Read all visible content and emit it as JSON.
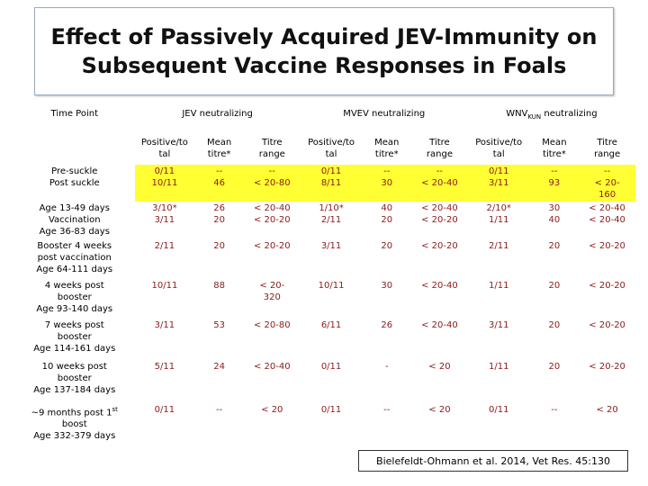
{
  "title": "Effect of Passively Acquired JEV-Immunity on Subsequent Vaccine Responses in Foals",
  "table": {
    "time_header": "Time Point",
    "groups": [
      {
        "text": "JEV neutralizing"
      },
      {
        "text": "MVEV neutralizing"
      },
      {
        "text": "WNV",
        "sub": "KUN",
        "after": " neutralizing"
      }
    ],
    "subheaders": [
      "Positive/to\ntal",
      "Mean\ntitre*",
      "Titre\nrange"
    ],
    "value_color": "#8b1a1a",
    "highlight_color": "#ffff33",
    "rows": [
      {
        "time": [
          "Pre-suckle",
          "Post suckle"
        ],
        "highlight": true,
        "cells": [
          "0/11\n10/11",
          "--\n46",
          "--\n< 20-80",
          "0/11\n8/11",
          "--\n30",
          "--\n< 20-40",
          "0/11\n3/11",
          "--\n93",
          "--\n< 20-\n160"
        ]
      },
      {
        "time": [
          "Age 13-49 days",
          "Vaccination",
          "Age 36-83 days"
        ],
        "cells": [
          "3/10*\n3/11",
          "26\n20",
          "< 20-40\n< 20-20",
          "1/10*\n2/11",
          "40\n20",
          "< 20-40\n< 20-20",
          "2/10*\n1/11",
          "30\n40",
          "< 20-40\n< 20-40"
        ]
      },
      {
        "time": [
          "Booster 4 weeks",
          "post vaccination",
          "Age 64-111 days"
        ],
        "cells": [
          "2/11",
          "20",
          "< 20-20",
          "3/11",
          "20",
          "< 20-20",
          "2/11",
          "20",
          "< 20-20"
        ]
      },
      {
        "time": [
          "4 weeks post",
          "booster",
          "Age 93-140 days"
        ],
        "cells": [
          "10/11",
          "88",
          "< 20-\n320",
          "10/11",
          "30",
          "< 20-40",
          "1/11",
          "20",
          "< 20-20"
        ]
      },
      {
        "time": [
          "7 weeks post",
          "booster",
          "Age 114-161 days"
        ],
        "cells": [
          "3/11",
          "53",
          "< 20-80",
          "6/11",
          "26",
          "< 20-40",
          "3/11",
          "20",
          "< 20-20"
        ]
      },
      {
        "time": [
          "10 weeks post",
          "booster",
          "Age 137-184 days"
        ],
        "cells": [
          "5/11",
          "24",
          "< 20-40",
          "0/11",
          "-",
          "< 20",
          "1/11",
          "20",
          "< 20-20"
        ]
      },
      {
        "time": [
          {
            "text": "~9 months post 1",
            "sup": "st"
          },
          "boost",
          "Age 332-379 days"
        ],
        "cells": [
          "0/11",
          "--",
          "< 20",
          "0/11",
          "--",
          "< 20",
          "0/11",
          "--",
          "< 20"
        ]
      }
    ]
  },
  "citation": "Bielefeldt-Ohmann et al. 2014, Vet Res. 45:130"
}
